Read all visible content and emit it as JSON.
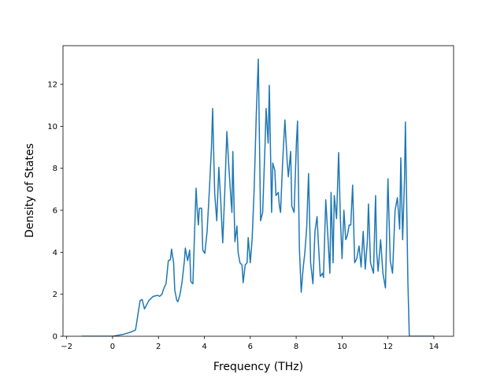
{
  "chart_data": {
    "type": "line",
    "x_label": "Frequency (THz)",
    "y_label": "Density of States",
    "xlim": [
      -2.16,
      14.86
    ],
    "ylim": [
      0,
      13.84
    ],
    "xticks": [
      {
        "value": -2,
        "label": "−2"
      },
      0,
      2,
      4,
      6,
      8,
      10,
      12,
      14
    ],
    "yticks": [
      0,
      2,
      4,
      6,
      8,
      10,
      12
    ],
    "grid": false,
    "series": [
      {
        "color": "#1f77b4",
        "x": [
          -1.35,
          0,
          0.5,
          0.8,
          1.0,
          1.1,
          1.2,
          1.29,
          1.39,
          1.58,
          1.77,
          1.96,
          2.05,
          2.15,
          2.24,
          2.33,
          2.43,
          2.52,
          2.57,
          2.66,
          2.71,
          2.8,
          2.85,
          2.94,
          3.03,
          3.13,
          3.17,
          3.27,
          3.36,
          3.41,
          3.5,
          3.59,
          3.64,
          3.69,
          3.74,
          3.78,
          3.88,
          3.93,
          4.02,
          4.12,
          4.22,
          4.31,
          4.36,
          4.45,
          4.54,
          4.63,
          4.71,
          4.8,
          4.89,
          4.98,
          5.07,
          5.16,
          5.2,
          5.24,
          5.33,
          5.42,
          5.47,
          5.55,
          5.64,
          5.69,
          5.78,
          5.86,
          5.91,
          6.0,
          6.08,
          6.17,
          6.26,
          6.35,
          6.45,
          6.54,
          6.64,
          6.69,
          6.78,
          6.83,
          6.93,
          6.98,
          7.07,
          7.12,
          7.22,
          7.27,
          7.32,
          7.41,
          7.51,
          7.61,
          7.66,
          7.76,
          7.81,
          7.91,
          8.01,
          8.06,
          8.14,
          8.22,
          8.3,
          8.38,
          8.46,
          8.54,
          8.63,
          8.73,
          8.82,
          8.91,
          8.96,
          9.05,
          9.15,
          9.19,
          9.29,
          9.38,
          9.47,
          9.52,
          9.61,
          9.66,
          9.76,
          9.85,
          9.93,
          10.0,
          10.08,
          10.16,
          10.23,
          10.31,
          10.38,
          10.46,
          10.55,
          10.64,
          10.74,
          10.83,
          10.92,
          11.01,
          11.1,
          11.15,
          11.24,
          11.37,
          11.46,
          11.51,
          11.57,
          11.68,
          11.78,
          11.89,
          12.0,
          12.05,
          12.1,
          12.2,
          12.31,
          12.41,
          12.51,
          12.56,
          12.64,
          12.72,
          12.76,
          12.87,
          12.93,
          14.0
        ],
        "values": [
          0,
          0,
          0.1,
          0.2,
          0.3,
          1.0,
          1.7,
          1.75,
          1.3,
          1.7,
          1.9,
          1.95,
          1.9,
          2.0,
          2.3,
          2.5,
          3.6,
          3.65,
          4.15,
          3.5,
          2.2,
          1.7,
          1.65,
          2.0,
          2.6,
          3.6,
          4.2,
          3.6,
          4.1,
          2.6,
          2.5,
          5.5,
          7.05,
          6.0,
          5.3,
          6.1,
          6.1,
          4.1,
          3.95,
          5.0,
          7.0,
          9.0,
          10.85,
          6.8,
          5.5,
          8.05,
          6.5,
          4.45,
          6.9,
          9.75,
          8.0,
          6.5,
          5.9,
          8.8,
          4.5,
          5.25,
          4.0,
          3.5,
          3.4,
          2.55,
          3.4,
          3.5,
          4.7,
          3.5,
          4.6,
          7.0,
          10.5,
          13.2,
          5.5,
          5.9,
          9.0,
          10.85,
          9.2,
          11.95,
          5.9,
          8.25,
          7.9,
          6.7,
          6.85,
          6.2,
          5.9,
          8.3,
          10.3,
          8.3,
          7.6,
          8.8,
          6.2,
          5.9,
          9.2,
          10.25,
          4.2,
          2.1,
          3.2,
          4.0,
          5.2,
          7.75,
          3.5,
          2.5,
          5.0,
          5.7,
          4.6,
          2.85,
          3.0,
          2.8,
          6.5,
          4.8,
          3.0,
          6.85,
          3.5,
          6.7,
          5.6,
          8.75,
          5.5,
          3.7,
          6.0,
          4.6,
          4.8,
          5.3,
          5.3,
          7.2,
          3.5,
          3.7,
          4.3,
          3.3,
          5.0,
          3.2,
          4.5,
          6.3,
          3.5,
          3.0,
          6.7,
          4.0,
          3.1,
          4.6,
          3.0,
          2.3,
          7.5,
          5.5,
          3.6,
          3.0,
          6.0,
          6.6,
          5.1,
          8.5,
          4.6,
          7.5,
          10.2,
          2.5,
          0,
          0
        ]
      }
    ]
  }
}
